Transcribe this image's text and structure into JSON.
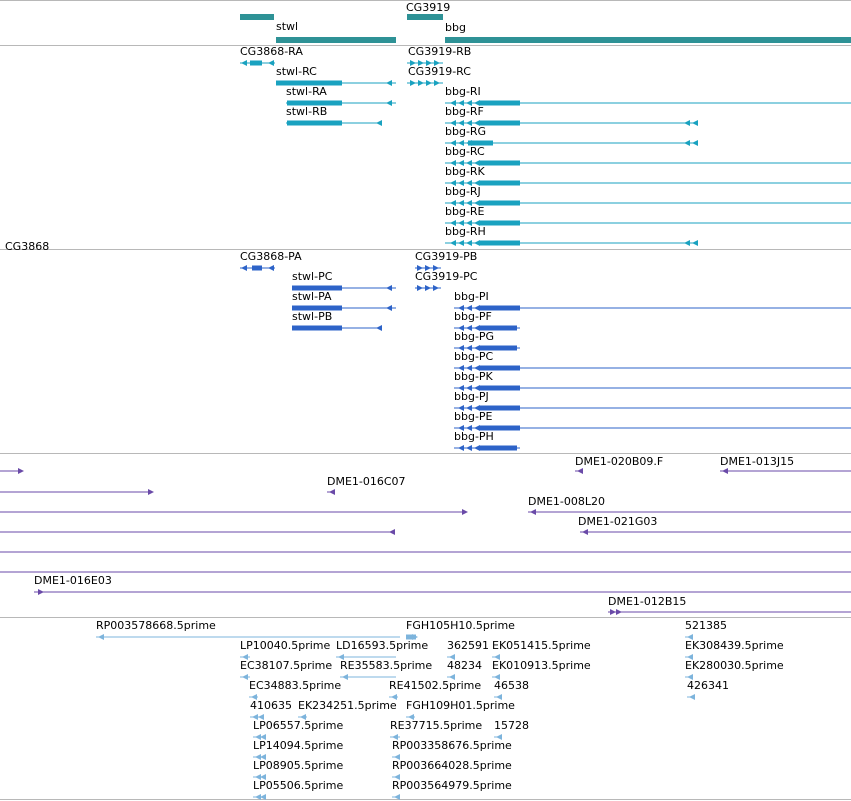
{
  "colors": {
    "gene": "#2e9296",
    "transcript": "#1aa2c0",
    "protein": "#2d63c8",
    "clone": "#6a4aa8",
    "est": "#7db4dc",
    "separator": "#b8b8b8"
  },
  "tracks": {
    "genes": [
      {
        "label": "CG3868",
        "strand": "-"
      },
      {
        "label": "stwl",
        "strand": "-"
      },
      {
        "label": "CG3919",
        "strand": "+"
      },
      {
        "label": "bbg",
        "strand": "-"
      }
    ],
    "transcripts": [
      {
        "label": "CG3868-RA",
        "strand": "-"
      },
      {
        "label": "stwl-RC",
        "strand": "-"
      },
      {
        "label": "stwl-RA",
        "strand": "-"
      },
      {
        "label": "stwl-RB",
        "strand": "-"
      },
      {
        "label": "CG3919-RB",
        "strand": "+"
      },
      {
        "label": "CG3919-RC",
        "strand": "+"
      },
      {
        "label": "bbg-RI",
        "strand": "-"
      },
      {
        "label": "bbg-RF",
        "strand": "-"
      },
      {
        "label": "bbg-RG",
        "strand": "-"
      },
      {
        "label": "bbg-RC",
        "strand": "-"
      },
      {
        "label": "bbg-RK",
        "strand": "-"
      },
      {
        "label": "bbg-RJ",
        "strand": "-"
      },
      {
        "label": "bbg-RE",
        "strand": "-"
      },
      {
        "label": "bbg-RH",
        "strand": "-"
      }
    ],
    "proteins": [
      {
        "label": "CG3868-PA",
        "strand": "-"
      },
      {
        "label": "stwl-PC",
        "strand": "-"
      },
      {
        "label": "stwl-PA",
        "strand": "-"
      },
      {
        "label": "stwl-PB",
        "strand": "-"
      },
      {
        "label": "CG3919-PB",
        "strand": "+"
      },
      {
        "label": "CG3919-PC",
        "strand": "+"
      },
      {
        "label": "bbg-PI",
        "strand": "-"
      },
      {
        "label": "bbg-PF",
        "strand": "-"
      },
      {
        "label": "bbg-PG",
        "strand": "-"
      },
      {
        "label": "bbg-PC",
        "strand": "-"
      },
      {
        "label": "bbg-PK",
        "strand": "-"
      },
      {
        "label": "bbg-PJ",
        "strand": "-"
      },
      {
        "label": "bbg-PE",
        "strand": "-"
      },
      {
        "label": "bbg-PH",
        "strand": "-"
      }
    ],
    "clones": [
      {
        "label": "",
        "strand": "+"
      },
      {
        "label": "DME1-020B09.F",
        "strand": "-"
      },
      {
        "label": "DME1-013J15",
        "strand": "-"
      },
      {
        "label": "",
        "strand": "+"
      },
      {
        "label": "DME1-016C07",
        "strand": "-"
      },
      {
        "label": "",
        "strand": "+"
      },
      {
        "label": "DME1-008L20",
        "strand": "-"
      },
      {
        "label": "",
        "strand": "-"
      },
      {
        "label": "DME1-021G03",
        "strand": "-"
      },
      {
        "label": "",
        "strand": ""
      },
      {
        "label": "",
        "strand": ""
      },
      {
        "label": "DME1-016E03",
        "strand": "+"
      },
      {
        "label": "DME1-012B15",
        "strand": "+"
      }
    ],
    "ests": [
      {
        "label": "RP003578668.5prime",
        "strand": "-"
      },
      {
        "label": "FGH105H10.5prime",
        "strand": "+"
      },
      {
        "label": "521385",
        "strand": "-"
      },
      {
        "label": "LP10040.5prime",
        "strand": "-"
      },
      {
        "label": "LD16593.5prime",
        "strand": "-"
      },
      {
        "label": "362591",
        "strand": "-"
      },
      {
        "label": "EK051415.5prime",
        "strand": "-"
      },
      {
        "label": "EK308439.5prime",
        "strand": "-"
      },
      {
        "label": "EC38107.5prime",
        "strand": "-"
      },
      {
        "label": "RE35583.5prime",
        "strand": "-"
      },
      {
        "label": "48234",
        "strand": "-"
      },
      {
        "label": "EK010913.5prime",
        "strand": "-"
      },
      {
        "label": "EK280030.5prime",
        "strand": "-"
      },
      {
        "label": "EC34883.5prime",
        "strand": "-"
      },
      {
        "label": "RE41502.5prime",
        "strand": "-"
      },
      {
        "label": "46538",
        "strand": "-"
      },
      {
        "label": "426341",
        "strand": "-"
      },
      {
        "label": "410635",
        "strand": "-"
      },
      {
        "label": "EK234251.5prime",
        "strand": "-"
      },
      {
        "label": "FGH109H01.5prime",
        "strand": "-"
      },
      {
        "label": "LP06557.5prime",
        "strand": "-"
      },
      {
        "label": "RE37715.5prime",
        "strand": "-"
      },
      {
        "label": "15728",
        "strand": "-"
      },
      {
        "label": "LP14094.5prime",
        "strand": "-"
      },
      {
        "label": "RP003358676.5prime",
        "strand": "-"
      },
      {
        "label": "LP08905.5prime",
        "strand": "-"
      },
      {
        "label": "RP003664028.5prime",
        "strand": "-"
      },
      {
        "label": "LP05506.5prime",
        "strand": "-"
      },
      {
        "label": "RP003564979.5prime",
        "strand": "-"
      }
    ]
  }
}
